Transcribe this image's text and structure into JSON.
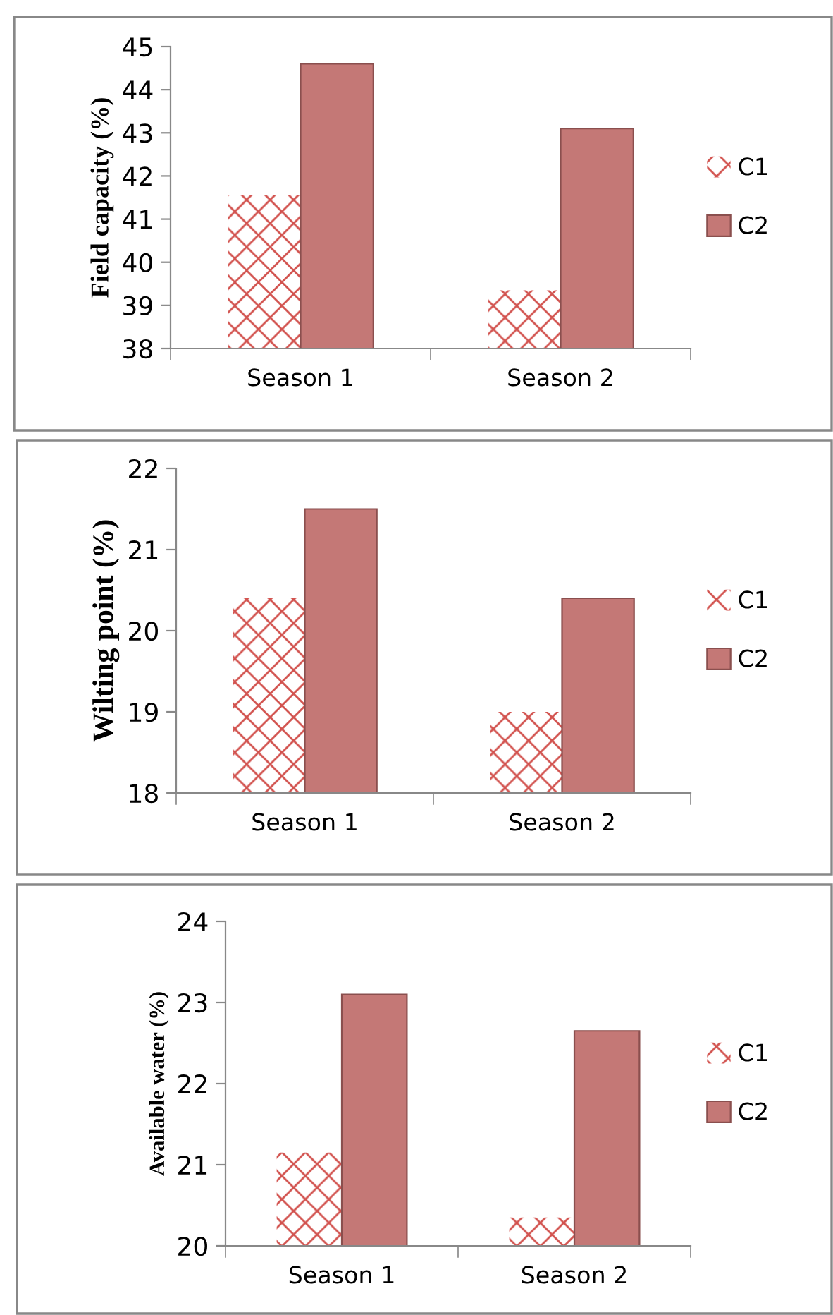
{
  "chart_data": [
    {
      "type": "bar",
      "ylabel": "Field capacity (%)",
      "categories": [
        "Season 1",
        "Season 2"
      ],
      "series": [
        {
          "name": "C1",
          "color": "#d2524e",
          "values": [
            41.55,
            39.35
          ]
        },
        {
          "name": "C2",
          "color": "#c47876",
          "values": [
            44.6,
            43.1
          ]
        }
      ],
      "ylim": [
        38,
        45
      ],
      "yticks": [
        38,
        39,
        40,
        41,
        42,
        43,
        44,
        45
      ],
      "legend": "right",
      "grid": false
    },
    {
      "type": "bar",
      "ylabel": "Wilting point (%)",
      "categories": [
        "Season 1",
        "Season 2"
      ],
      "series": [
        {
          "name": "C1",
          "color": "#d2524e",
          "values": [
            20.4,
            19.0
          ]
        },
        {
          "name": "C2",
          "color": "#c47876",
          "values": [
            21.5,
            20.4
          ]
        }
      ],
      "ylim": [
        18,
        22
      ],
      "yticks": [
        18,
        19,
        20,
        21,
        22
      ],
      "legend": "right",
      "grid": false
    },
    {
      "type": "bar",
      "ylabel": "Available water (%)",
      "categories": [
        "Season 1",
        "Season 2"
      ],
      "series": [
        {
          "name": "C1",
          "color": "#d2524e",
          "values": [
            21.15,
            20.35
          ]
        },
        {
          "name": "C2",
          "color": "#c47876",
          "values": [
            23.1,
            22.65
          ]
        }
      ],
      "ylim": [
        20,
        24
      ],
      "yticks": [
        20,
        21,
        22,
        23,
        24
      ],
      "legend": "right",
      "grid": false
    }
  ]
}
